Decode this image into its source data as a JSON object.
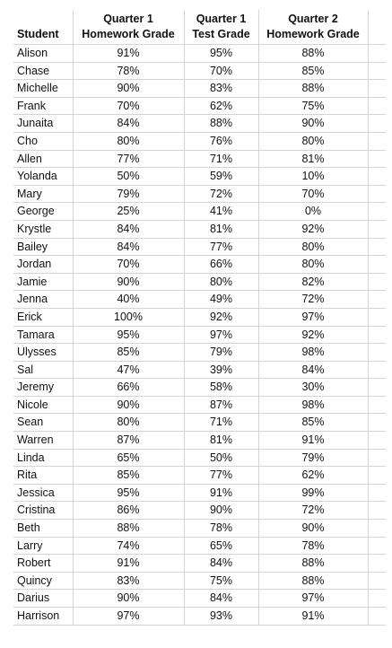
{
  "table": {
    "headers": [
      {
        "line1": "",
        "line2": "Student"
      },
      {
        "line1": "Quarter 1",
        "line2": "Homework Grade"
      },
      {
        "line1": "Quarter 1",
        "line2": "Test Grade"
      },
      {
        "line1": "Quarter 2",
        "line2": "Homework Grade"
      }
    ],
    "rows": [
      [
        "Alison",
        "91%",
        "95%",
        "88%"
      ],
      [
        "Chase",
        "78%",
        "70%",
        "85%"
      ],
      [
        "Michelle",
        "90%",
        "83%",
        "88%"
      ],
      [
        "Frank",
        "70%",
        "62%",
        "75%"
      ],
      [
        "Junaita",
        "84%",
        "88%",
        "90%"
      ],
      [
        "Cho",
        "80%",
        "76%",
        "80%"
      ],
      [
        "Allen",
        "77%",
        "71%",
        "81%"
      ],
      [
        "Yolanda",
        "50%",
        "59%",
        "10%"
      ],
      [
        "Mary",
        "79%",
        "72%",
        "70%"
      ],
      [
        "George",
        "25%",
        "41%",
        "0%"
      ],
      [
        "Krystle",
        "84%",
        "81%",
        "92%"
      ],
      [
        "Bailey",
        "84%",
        "77%",
        "80%"
      ],
      [
        "Jordan",
        "70%",
        "66%",
        "80%"
      ],
      [
        "Jamie",
        "90%",
        "80%",
        "82%"
      ],
      [
        "Jenna",
        "40%",
        "49%",
        "72%"
      ],
      [
        "Erick",
        "100%",
        "92%",
        "97%"
      ],
      [
        "Tamara",
        "95%",
        "97%",
        "92%"
      ],
      [
        "Ulysses",
        "85%",
        "79%",
        "98%"
      ],
      [
        "Sal",
        "47%",
        "39%",
        "84%"
      ],
      [
        "Jeremy",
        "66%",
        "58%",
        "30%"
      ],
      [
        "Nicole",
        "90%",
        "87%",
        "98%"
      ],
      [
        "Sean",
        "80%",
        "71%",
        "85%"
      ],
      [
        "Warren",
        "87%",
        "81%",
        "91%"
      ],
      [
        "Linda",
        "65%",
        "50%",
        "79%"
      ],
      [
        "Rita",
        "85%",
        "77%",
        "62%"
      ],
      [
        "Jessica",
        "95%",
        "91%",
        "99%"
      ],
      [
        "Cristina",
        "86%",
        "90%",
        "72%"
      ],
      [
        "Beth",
        "88%",
        "78%",
        "90%"
      ],
      [
        "Larry",
        "74%",
        "65%",
        "78%"
      ],
      [
        "Robert",
        "91%",
        "84%",
        "88%"
      ],
      [
        "Quincy",
        "83%",
        "75%",
        "88%"
      ],
      [
        "Darius",
        "90%",
        "84%",
        "97%"
      ],
      [
        "Harrison",
        "97%",
        "93%",
        "91%"
      ]
    ]
  }
}
